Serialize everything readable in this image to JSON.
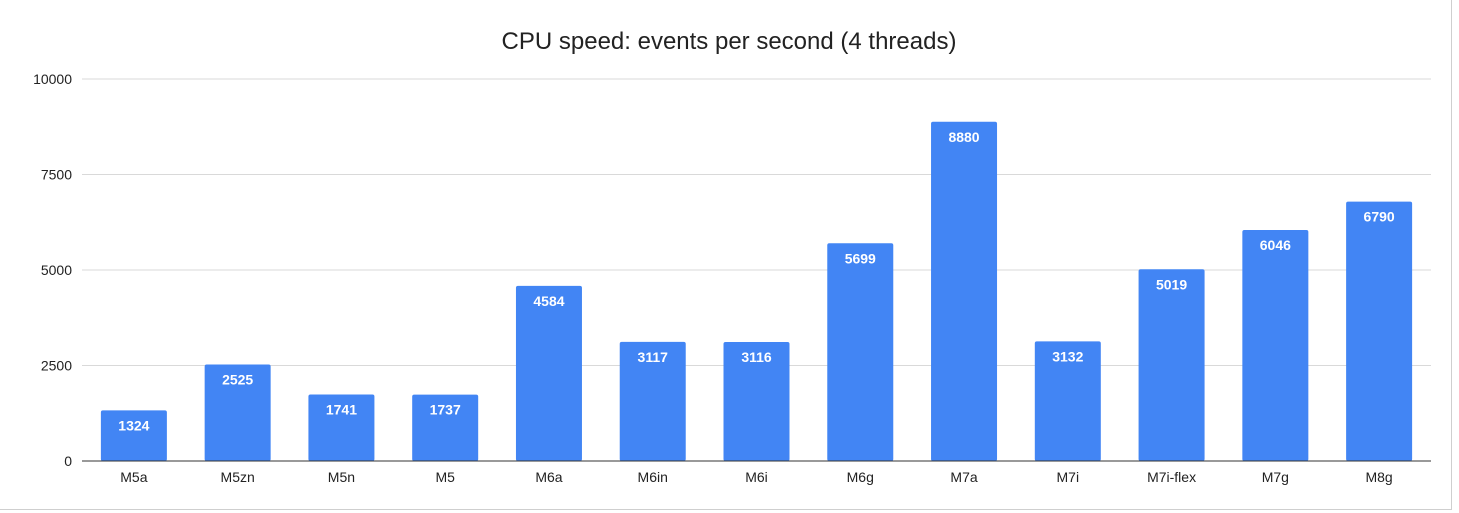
{
  "chart_data": {
    "type": "bar",
    "title": "CPU speed: events per second (4 threads)",
    "xlabel": "",
    "ylabel": "",
    "categories": [
      "M5a",
      "M5zn",
      "M5n",
      "M5",
      "M6a",
      "M6in",
      "M6i",
      "M6g",
      "M7a",
      "M7i",
      "M7i-flex",
      "M7g",
      "M8g"
    ],
    "values": [
      1324,
      2525,
      1741,
      1737,
      4584,
      3117,
      3116,
      5699,
      8880,
      3132,
      5019,
      6046,
      6790
    ],
    "ylim": [
      0,
      10000
    ],
    "yticks": [
      "0",
      "2500",
      "5000",
      "7500",
      "10000"
    ],
    "grid": true,
    "legend": "none",
    "bar_color": "#4285f4",
    "data_labels": true
  }
}
